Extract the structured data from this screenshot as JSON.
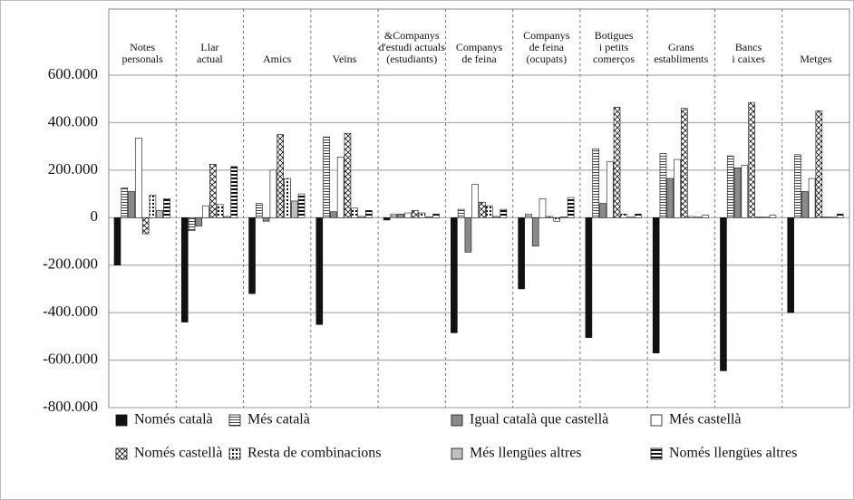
{
  "chart_data": {
    "type": "bar",
    "categories": [
      [
        "Notes",
        "personals"
      ],
      [
        "Llar",
        "actual"
      ],
      [
        "Amics"
      ],
      [
        "Veïns"
      ],
      [
        "&Companys",
        "d'estudi actuals",
        "(estudiants)"
      ],
      [
        "Companys",
        "de feina"
      ],
      [
        "Companys",
        "de feina",
        "(ocupats)"
      ],
      [
        "Botigues",
        "i petits",
        "comerços"
      ],
      [
        "Grans",
        "establiments"
      ],
      [
        "Bancs",
        "i caixes"
      ],
      [
        "Metges"
      ]
    ],
    "series": [
      {
        "name": "Només català",
        "color": "#111111",
        "values": [
          -200000,
          -440000,
          -320000,
          -450000,
          -10000,
          -485000,
          -300000,
          -505000,
          -570000,
          -645000,
          -400000
        ]
      },
      {
        "name": "Més català",
        "color": "#ffffff",
        "values": [
          125000,
          -55000,
          60000,
          340000,
          15000,
          35000,
          15000,
          290000,
          270000,
          260000,
          265000
        ]
      },
      {
        "name": "Igual català que castellà",
        "color": "#8a8a8a",
        "values": [
          110000,
          -35000,
          -15000,
          25000,
          15000,
          -145000,
          -120000,
          60000,
          165000,
          210000,
          110000
        ]
      },
      {
        "name": "Més castellà",
        "color": "#ffffff",
        "values": [
          335000,
          50000,
          200000,
          255000,
          20000,
          140000,
          80000,
          235000,
          245000,
          220000,
          165000
        ]
      },
      {
        "name": "Només castellà",
        "color": "#ffffff",
        "values": [
          -68000,
          225000,
          350000,
          355000,
          30000,
          65000,
          5000,
          465000,
          460000,
          485000,
          450000
        ]
      },
      {
        "name": "Resta de combinacions",
        "color": "#ffffff",
        "values": [
          95000,
          55000,
          165000,
          40000,
          20000,
          50000,
          -15000,
          15000,
          5000,
          3000,
          3000
        ]
      },
      {
        "name": "Més llengües altres",
        "color": "#bdbdbd",
        "values": [
          30000,
          5000,
          70000,
          5000,
          3000,
          5000,
          3000,
          2000,
          2000,
          2000,
          2000
        ]
      },
      {
        "name": "Només llengües altres",
        "color": "#ffffff",
        "values": [
          80000,
          215000,
          100000,
          30000,
          15000,
          35000,
          85000,
          15000,
          10000,
          10000,
          15000
        ]
      }
    ],
    "ylim": [
      -800000,
      600000
    ],
    "yticks": [
      {
        "value": -800000,
        "label": "-800.000"
      },
      {
        "value": -600000,
        "label": "-600.000"
      },
      {
        "value": -400000,
        "label": "-400.000"
      },
      {
        "value": -200000,
        "label": "-200.000"
      },
      0,
      {
        "value": 200000,
        "label": "200.000"
      },
      {
        "value": 400000,
        "label": "400.000"
      },
      {
        "value": 600000,
        "label": "600.000"
      }
    ],
    "grid": true
  }
}
